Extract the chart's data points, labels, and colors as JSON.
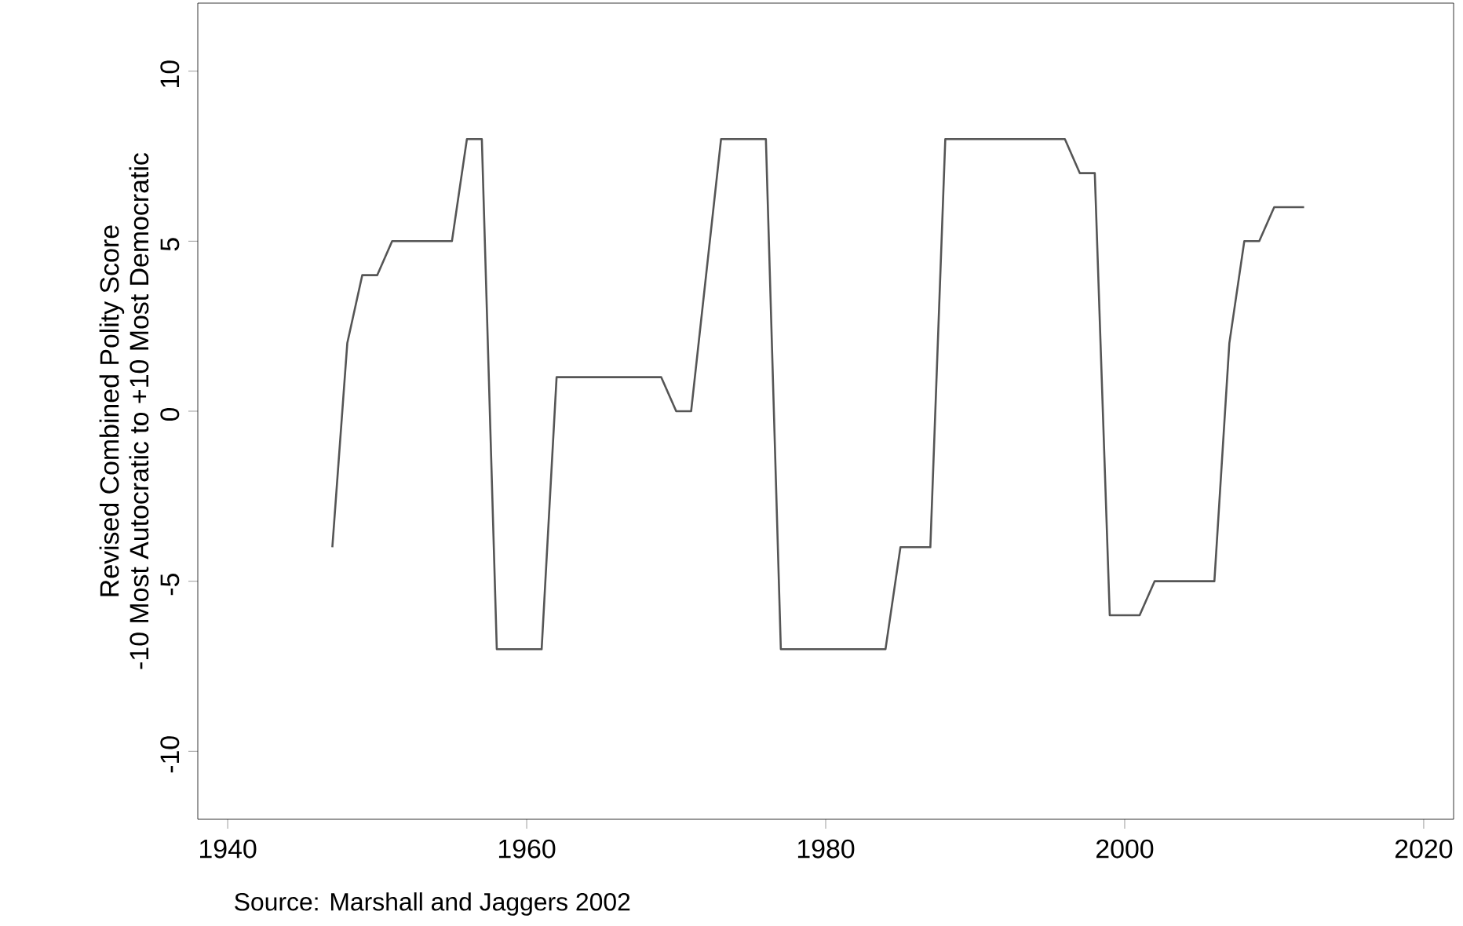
{
  "chart_data": {
    "type": "line",
    "ylabel": "Revised Combined Polity Score\n-10 Most Autocratic to +10 Most Democratic",
    "annotations": [
      "Source: Marshall and Jaggers 2002"
    ],
    "xlim": [
      1938,
      2022
    ],
    "xticks": [
      1940,
      1960,
      1980,
      2000,
      2020
    ],
    "ylim": [
      -12,
      12
    ],
    "yticks": [
      -10,
      -5,
      0,
      5,
      10
    ],
    "grid": false,
    "x": [
      1947,
      1948,
      1949,
      1950,
      1951,
      1955,
      1956,
      1957,
      1958,
      1961,
      1962,
      1969,
      1970,
      1971,
      1973,
      1976,
      1977,
      1984,
      1985,
      1987,
      1988,
      1996,
      1997,
      1998,
      1999,
      2001,
      2002,
      2006,
      2007,
      2008,
      2009,
      2010,
      2012
    ],
    "series": [
      {
        "color": "#555555",
        "values": [
          -4,
          2,
          4,
          4,
          5,
          5,
          8,
          8,
          -7,
          -7,
          1,
          1,
          0,
          0,
          8,
          8,
          -7,
          -7,
          -4,
          -4,
          8,
          8,
          7,
          7,
          -6,
          -6,
          -5,
          -5,
          2,
          5,
          5,
          6,
          6
        ]
      }
    ]
  }
}
